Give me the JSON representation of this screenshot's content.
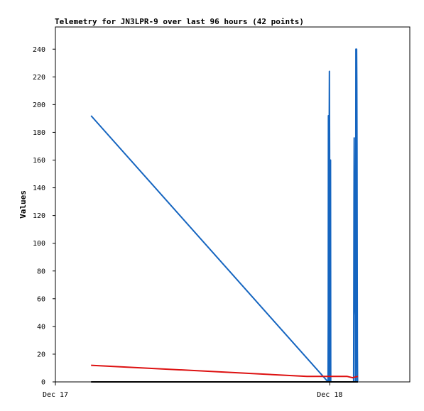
{
  "chart_data": {
    "type": "line",
    "title": "Telemetry for JN3LPR-9 over last 96 hours (42 points)",
    "xlabel": "",
    "ylabel": "Values",
    "xlim": [
      "Dec 17 00:00",
      "Dec 18 07:00"
    ],
    "ylim": [
      0,
      256
    ],
    "y_ticks": [
      0,
      20,
      40,
      60,
      80,
      100,
      120,
      140,
      160,
      180,
      200,
      220,
      240
    ],
    "x_ticks": [
      {
        "label": "Dec 17",
        "t": "Dec 17 00:00"
      },
      {
        "label": "Dec 18",
        "t": "Dec 18 00:00"
      }
    ],
    "grid": false,
    "series": [
      {
        "color": "#1565c0",
        "points": [
          [
            "Dec 17 03:07",
            192
          ],
          [
            "Dec 17 23:51",
            0
          ],
          [
            "Dec 17 23:52",
            48
          ],
          [
            "Dec 17 23:53",
            192
          ],
          [
            "Dec 17 23:54",
            0
          ],
          [
            "Dec 17 23:55",
            144
          ],
          [
            "Dec 17 23:56",
            0
          ],
          [
            "Dec 17 23:57",
            176
          ],
          [
            "Dec 17 23:58",
            224
          ],
          [
            "Dec 17 23:59",
            168
          ],
          [
            "Dec 18 00:00",
            0
          ],
          [
            "Dec 18 00:01",
            48
          ],
          [
            "Dec 18 00:02",
            80
          ],
          [
            "Dec 18 00:03",
            128
          ],
          [
            "Dec 18 00:04",
            160
          ],
          [
            "Dec 18 00:05",
            0
          ],
          [
            "Dec 18 02:05",
            0
          ],
          [
            "Dec 18 02:06",
            48
          ],
          [
            "Dec 18 02:07",
            132
          ],
          [
            "Dec 18 02:08",
            176
          ],
          [
            "Dec 18 02:09",
            152
          ],
          [
            "Dec 18 02:10",
            120
          ],
          [
            "Dec 18 02:12",
            56
          ],
          [
            "Dec 18 02:14",
            48
          ],
          [
            "Dec 18 02:15",
            0
          ],
          [
            "Dec 18 02:16",
            104
          ],
          [
            "Dec 18 02:17",
            240
          ],
          [
            "Dec 18 02:18",
            0
          ],
          [
            "Dec 18 02:19",
            64
          ],
          [
            "Dec 18 02:20",
            120
          ],
          [
            "Dec 18 02:21",
            240
          ],
          [
            "Dec 18 02:22",
            216
          ],
          [
            "Dec 18 02:23",
            168
          ],
          [
            "Dec 18 02:24",
            72
          ],
          [
            "Dec 18 02:25",
            24
          ],
          [
            "Dec 18 02:26",
            0
          ],
          [
            "Dec 18 02:27",
            0
          ]
        ]
      },
      {
        "color": "#dd1111",
        "points": [
          [
            "Dec 17 03:07",
            12
          ],
          [
            "Dec 17 22:00",
            4
          ],
          [
            "Dec 17 23:50",
            4
          ],
          [
            "Dec 18 01:30",
            4
          ],
          [
            "Dec 18 02:00",
            3
          ],
          [
            "Dec 18 02:28",
            4
          ]
        ]
      },
      {
        "color": "#000000",
        "points": [
          [
            "Dec 17 03:07",
            0
          ],
          [
            "Dec 18 02:28",
            0
          ]
        ]
      }
    ]
  }
}
